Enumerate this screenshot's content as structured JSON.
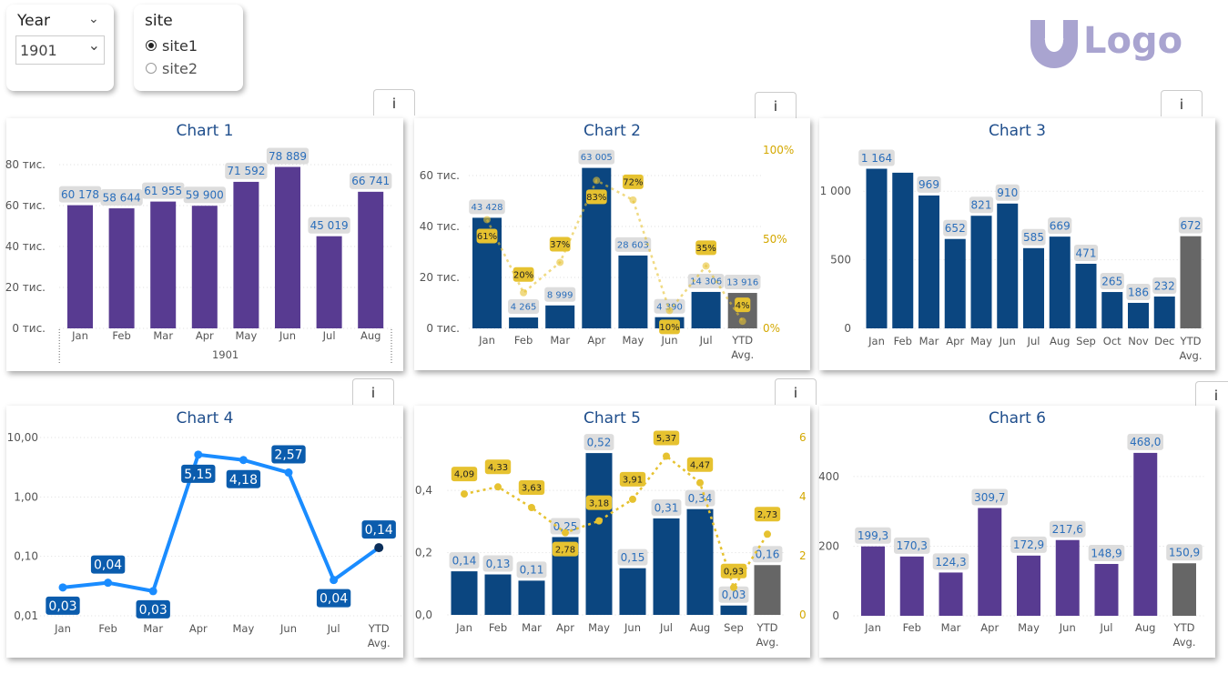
{
  "slicers": {
    "year": {
      "title": "Year",
      "value": "1901"
    },
    "site": {
      "title": "site",
      "options": [
        {
          "label": "site1",
          "selected": true
        },
        {
          "label": "site2",
          "selected": false
        }
      ]
    }
  },
  "logo": {
    "text": "Logo",
    "color": "#a9a4d0"
  },
  "info_label": "i",
  "colors": {
    "purple": "#583b91",
    "navy": "#0b4680",
    "gray": "#666666",
    "yellow": "#e6c230",
    "line_blue": "#1a8cff",
    "label_text": "#2a6ebb",
    "label_bg": "#dddddd"
  },
  "chart_data": [
    {
      "title": "Chart 1",
      "type": "bar",
      "categories": [
        "Jan",
        "Feb",
        "Mar",
        "Apr",
        "May",
        "Jun",
        "Jul",
        "Aug"
      ],
      "group_label": "1901",
      "values": [
        60178,
        58644,
        61955,
        59900,
        71592,
        78889,
        45019,
        66741
      ],
      "labels": [
        "60 178",
        "58 644",
        "61 955",
        "59 900",
        "71 592",
        "78 889",
        "45 019",
        "66 741"
      ],
      "yticks": [
        "0 тис.",
        "20 тис.",
        "40 тис.",
        "60 тис.",
        "80 тис."
      ],
      "ylim": [
        0,
        80000
      ],
      "bar_color": "purple"
    },
    {
      "title": "Chart 2",
      "type": "bar+line",
      "categories": [
        "Jan",
        "Feb",
        "Mar",
        "Apr",
        "May",
        "Jun",
        "Jul",
        "YTD Avg."
      ],
      "values": [
        43428,
        4265,
        8999,
        63005,
        28603,
        4390,
        14306,
        13916
      ],
      "labels": [
        "43 428",
        "4 265",
        "8 999",
        "63 005",
        "28 603",
        "4 390",
        "14 306",
        "13 916"
      ],
      "line_values": [
        61,
        20,
        37,
        83,
        72,
        10,
        35,
        4
      ],
      "line_labels": [
        "61%",
        "20%",
        "37%",
        "83%",
        "72%",
        "10%",
        "35%",
        "4%"
      ],
      "yticks": [
        "0 тис.",
        "20 тис.",
        "40 тис.",
        "60 тис."
      ],
      "ylim": [
        0,
        70000
      ],
      "y2ticks": [
        "0%",
        "50%",
        "100%"
      ],
      "y2lim": [
        0,
        100
      ],
      "bar_color": "navy"
    },
    {
      "title": "Chart 3",
      "type": "bar",
      "categories": [
        "Jan",
        "Feb",
        "Mar",
        "Apr",
        "May",
        "Jun",
        "Jul",
        "Aug",
        "Sep",
        "Oct",
        "Nov",
        "Dec",
        "YTD Avg."
      ],
      "values": [
        1164,
        1135,
        969,
        652,
        821,
        910,
        585,
        669,
        471,
        265,
        186,
        232,
        672
      ],
      "labels": [
        "1 164",
        "",
        "969",
        "652",
        "821",
        "910",
        "585",
        "669",
        "471",
        "265",
        "186",
        "232",
        "672"
      ],
      "yticks": [
        "0",
        "500",
        "1 000"
      ],
      "ylim": [
        0,
        1300
      ],
      "bar_color": "navy"
    },
    {
      "title": "Chart 4",
      "type": "line",
      "scale": "log",
      "categories": [
        "Jan",
        "Feb",
        "Mar",
        "Apr",
        "May",
        "Jun",
        "Jul",
        "YTD Avg."
      ],
      "values": [
        0.03,
        0.036,
        0.026,
        5.15,
        4.18,
        2.57,
        0.04,
        0.14
      ],
      "labels": [
        "0,03",
        "0,04",
        "0,03",
        "5,15",
        "4,18",
        "2,57",
        "0,04",
        "0,14"
      ],
      "yticks": [
        "0,01",
        "0,10",
        "1,00",
        "10,00"
      ],
      "ylim": [
        0.01,
        10
      ]
    },
    {
      "title": "Chart 5",
      "type": "bar+line",
      "categories": [
        "Jan",
        "Feb",
        "Mar",
        "Apr",
        "May",
        "Jun",
        "Jul",
        "Aug",
        "Sep",
        "YTD Avg."
      ],
      "values": [
        0.14,
        0.13,
        0.11,
        0.25,
        0.52,
        0.15,
        0.31,
        0.34,
        0.03,
        0.16
      ],
      "labels": [
        "0,14",
        "0,13",
        "0,11",
        "0,25",
        "0,52",
        "0,15",
        "0,31",
        "0,34",
        "0,03",
        "0,16"
      ],
      "line_values": [
        4.09,
        4.33,
        3.63,
        2.78,
        3.18,
        3.91,
        5.37,
        4.47,
        0.93,
        2.73
      ],
      "line_labels": [
        "4,09",
        "4,33",
        "3,63",
        "2,78",
        "3,18",
        "3,91",
        "5,37",
        "4,47",
        "0,93",
        "2,73"
      ],
      "yticks": [
        "0,0",
        "0,2",
        "0,4"
      ],
      "ylim": [
        0,
        0.57
      ],
      "y2ticks": [
        "0",
        "2",
        "4",
        "6"
      ],
      "y2lim": [
        0,
        6
      ],
      "bar_color": "navy"
    },
    {
      "title": "Chart 6",
      "type": "bar",
      "categories": [
        "Jan",
        "Feb",
        "Mar",
        "Apr",
        "May",
        "Jun",
        "Jul",
        "Aug",
        "YTD Avg."
      ],
      "values": [
        199.3,
        170.3,
        124.3,
        309.7,
        172.9,
        217.6,
        148.9,
        468.0,
        150.9
      ],
      "labels": [
        "199,3",
        "170,3",
        "124,3",
        "309,7",
        "172,9",
        "217,6",
        "148,9",
        "468,0",
        "150,9"
      ],
      "yticks": [
        "0",
        "200",
        "400"
      ],
      "ylim": [
        0,
        520
      ],
      "bar_color": "purple"
    }
  ]
}
